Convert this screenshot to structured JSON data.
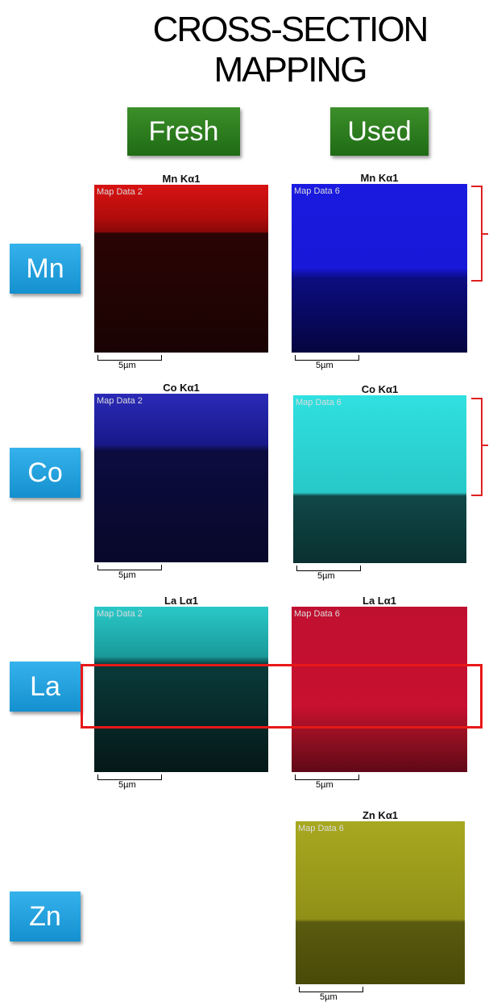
{
  "title": {
    "lines": [
      "CROSS-SECTION",
      "MAPPING"
    ]
  },
  "columns": [
    "Fresh",
    "Used"
  ],
  "rows": [
    {
      "label": "Mn",
      "fresh": {
        "title": "Mn Kα1",
        "map_label": "Map Data 2",
        "scale": "5µm"
      },
      "used": {
        "title": "Mn Kα1",
        "map_label": "Map Data 6",
        "scale": "5µm"
      }
    },
    {
      "label": "Co",
      "fresh": {
        "title": "Co Kα1",
        "map_label": "Map Data 2",
        "scale": "5µm"
      },
      "used": {
        "title": "Co Kα1",
        "map_label": "Map Data 6",
        "scale": "5µm"
      }
    },
    {
      "label": "La",
      "fresh": {
        "title": "La Lα1",
        "map_label": "Map Data 2",
        "scale": "5µm"
      },
      "used": {
        "title": "La Lα1",
        "map_label": "Map Data 6",
        "scale": "5µm"
      }
    },
    {
      "label": "Zn",
      "used": {
        "title": "Zn Kα1",
        "map_label": "Map Data 6",
        "scale": "5µm"
      }
    }
  ]
}
